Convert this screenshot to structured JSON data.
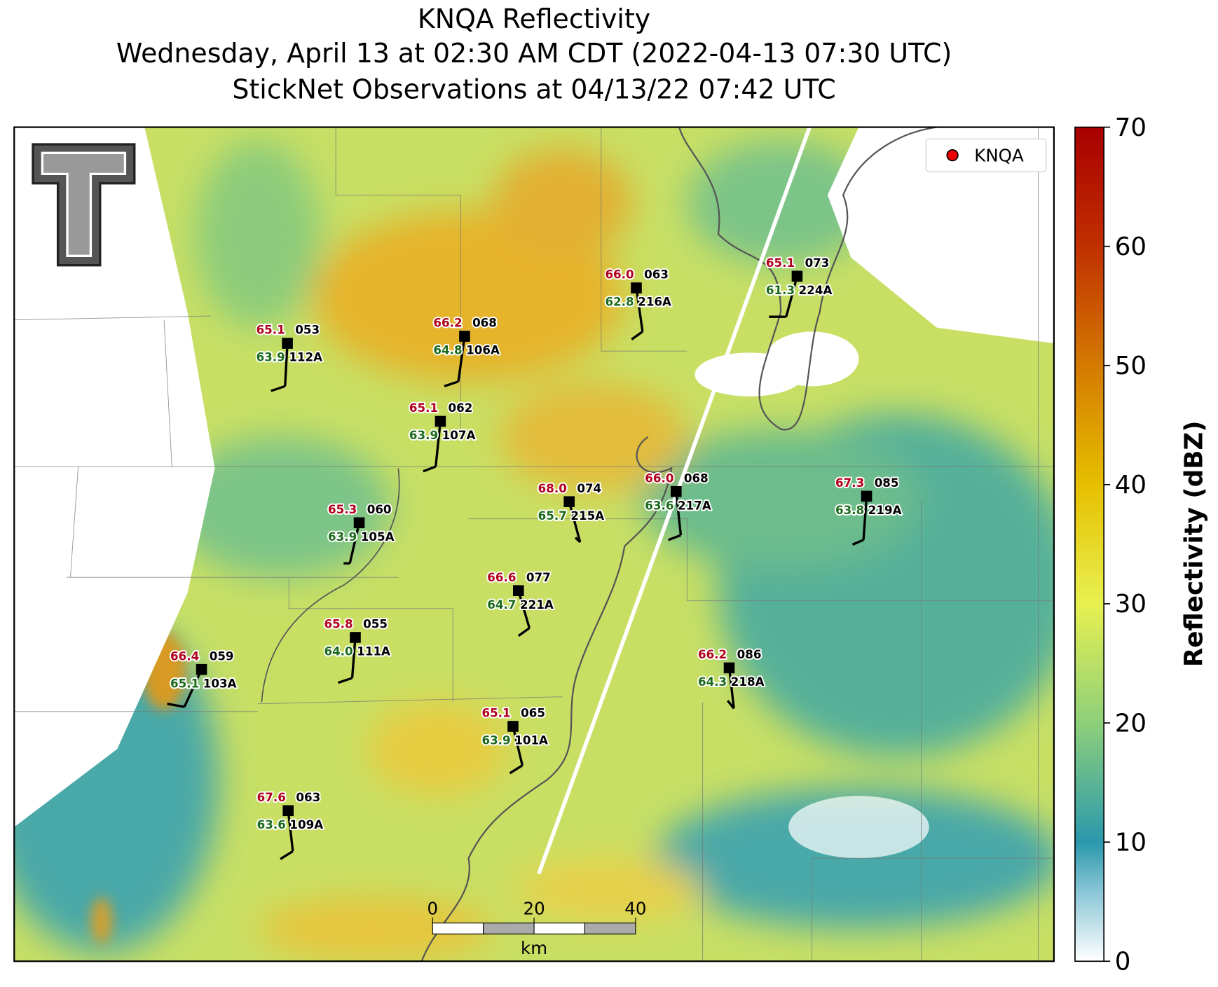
{
  "header": {
    "title": "KNQA Reflectivity",
    "subtitle": "Wednesday, April 13 at 02:30 AM CDT (2022-04-13 07:30 UTC)",
    "observations": "StickNet Observations at 04/13/22 07:42 UTC"
  },
  "stations": [
    {
      "id": "112A",
      "temperature": "65.1",
      "dewpoint": "63.9",
      "code": "053"
    },
    {
      "id": "106A",
      "temperature": "66.2",
      "dewpoint": "64.8",
      "code": "068"
    },
    {
      "id": "216A",
      "temperature": "66.0",
      "dewpoint": "62.8",
      "code": "063"
    },
    {
      "id": "224A",
      "temperature": "65.1",
      "dewpoint": "61.3",
      "code": "073"
    },
    {
      "id": "107A",
      "temperature": "65.1",
      "dewpoint": "63.9",
      "code": "062"
    },
    {
      "id": "215A",
      "temperature": "68.0",
      "dewpoint": "65.7",
      "code": "074"
    },
    {
      "id": "217A",
      "temperature": "66.0",
      "dewpoint": "63.6",
      "code": "068"
    },
    {
      "id": "219A",
      "temperature": "67.3",
      "dewpoint": "63.8",
      "code": "085"
    },
    {
      "id": "105A",
      "temperature": "65.3",
      "dewpoint": "63.9",
      "code": "060"
    },
    {
      "id": "221A",
      "temperature": "66.6",
      "dewpoint": "64.7",
      "code": "077"
    },
    {
      "id": "111A",
      "temperature": "65.8",
      "dewpoint": "64.0",
      "code": "055"
    },
    {
      "id": "103A",
      "temperature": "66.4",
      "dewpoint": "65.1",
      "code": "059"
    },
    {
      "id": "218A",
      "temperature": "66.2",
      "dewpoint": "64.3",
      "code": "086"
    },
    {
      "id": "101A",
      "temperature": "65.1",
      "dewpoint": "63.9",
      "code": "065"
    },
    {
      "id": "109A",
      "temperature": "67.6",
      "dewpoint": "63.6",
      "code": "063"
    }
  ],
  "legend": {
    "label": "KNQA"
  },
  "colorbar": {
    "label": "Reflectivity (dBZ)",
    "lim": [
      0,
      70
    ],
    "ticks": [
      0,
      10,
      20,
      30,
      40,
      50,
      60,
      70
    ]
  },
  "scale_bar": {
    "ticks": [
      0,
      20,
      40
    ],
    "unit": "km"
  }
}
